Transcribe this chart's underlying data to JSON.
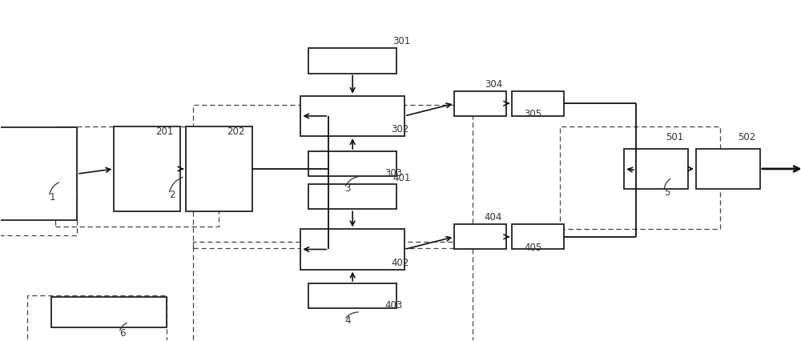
{
  "bg": "#ffffff",
  "fw": 10.0,
  "fh": 4.27,
  "dpi": 100,
  "blocks": {
    "b1": [
      0.03,
      0.31,
      0.13,
      0.37
    ],
    "b201": [
      0.183,
      0.33,
      0.083,
      0.34
    ],
    "b202": [
      0.273,
      0.33,
      0.083,
      0.34
    ],
    "b301": [
      0.44,
      0.76,
      0.11,
      0.1
    ],
    "b302": [
      0.44,
      0.54,
      0.13,
      0.16
    ],
    "b303": [
      0.44,
      0.35,
      0.11,
      0.1
    ],
    "b304": [
      0.6,
      0.59,
      0.065,
      0.1
    ],
    "b305": [
      0.672,
      0.59,
      0.065,
      0.1
    ],
    "b401": [
      0.44,
      0.22,
      0.11,
      0.1
    ],
    "b402": [
      0.44,
      0.01,
      0.13,
      0.16
    ],
    "b403": [
      0.44,
      -0.175,
      0.11,
      0.1
    ],
    "b404": [
      0.6,
      0.06,
      0.065,
      0.1
    ],
    "b405": [
      0.672,
      0.06,
      0.065,
      0.1
    ],
    "b501": [
      0.82,
      0.33,
      0.08,
      0.16
    ],
    "b502": [
      0.91,
      0.33,
      0.08,
      0.16
    ],
    "b6": [
      0.135,
      -0.24,
      0.145,
      0.12
    ]
  },
  "dashed": {
    "db1": [
      0.015,
      0.28,
      0.16,
      0.43
    ],
    "db2": [
      0.17,
      0.3,
      0.205,
      0.4
    ],
    "db3": [
      0.415,
      0.3,
      0.35,
      0.57
    ],
    "db4": [
      0.415,
      -0.24,
      0.35,
      0.56
    ],
    "db5": [
      0.8,
      0.295,
      0.2,
      0.41
    ],
    "db6": [
      0.12,
      -0.28,
      0.175,
      0.215
    ]
  },
  "labels": {
    "1": [
      0.06,
      0.22,
      "1"
    ],
    "2": [
      0.21,
      0.23,
      "2"
    ],
    "201": [
      0.193,
      0.48,
      "201"
    ],
    "202": [
      0.283,
      0.48,
      "202"
    ],
    "301": [
      0.49,
      0.84,
      "301"
    ],
    "302": [
      0.488,
      0.49,
      "302"
    ],
    "303": [
      0.48,
      0.315,
      "303"
    ],
    "304": [
      0.605,
      0.67,
      "304"
    ],
    "305": [
      0.655,
      0.55,
      "305"
    ],
    "3": [
      0.43,
      0.255,
      "3"
    ],
    "401": [
      0.49,
      0.295,
      "401"
    ],
    "402": [
      0.488,
      -0.04,
      "402"
    ],
    "403": [
      0.48,
      -0.21,
      "403"
    ],
    "404": [
      0.605,
      0.14,
      "404"
    ],
    "405": [
      0.655,
      0.02,
      "405"
    ],
    "4": [
      0.43,
      -0.27,
      "4"
    ],
    "501": [
      0.832,
      0.46,
      "501"
    ],
    "502": [
      0.922,
      0.46,
      "502"
    ],
    "5": [
      0.83,
      0.24,
      "5"
    ],
    "6": [
      0.148,
      -0.32,
      "6"
    ]
  }
}
